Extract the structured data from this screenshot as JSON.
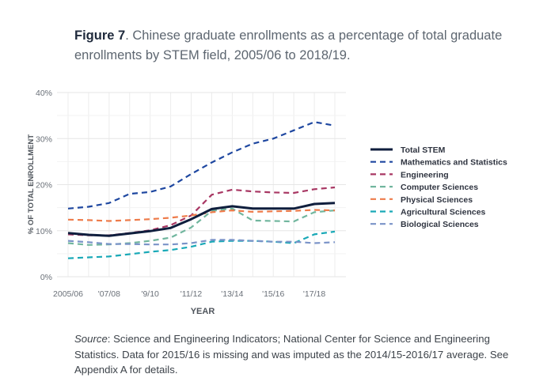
{
  "caption": {
    "label": "Figure 7",
    "text": ". Chinese graduate enrollments as a percentage of total graduate enrollments by STEM field, 2005/06 to 2018/19."
  },
  "source": {
    "label": "Source",
    "text": ": Science and Engineering Indicators; National Center for Science and Engineering Statistics. Data for 2015/16 is missing and was imputed as the 2014/15-2016/17 average. See Appendix A for details."
  },
  "chart_data": {
    "type": "line",
    "title": "Chinese graduate enrollments as a percentage of total graduate enrollments by STEM field, 2005/06 to 2018/19",
    "xlabel": "YEAR",
    "ylabel": "% OF TOTAL ENROLLMENT",
    "x": [
      "2005/06",
      "2006/07",
      "2007/08",
      "2008/09",
      "2009/10",
      "2010/11",
      "2011/12",
      "2012/13",
      "2013/14",
      "2014/15",
      "2015/16",
      "2016/17",
      "2017/18",
      "2018/19"
    ],
    "x_tick_labels": [
      "2005/06",
      "'07/08",
      "'9/10",
      "'11/12",
      "'13/14",
      "'15/16",
      "'17/18"
    ],
    "x_tick_positions": [
      0,
      2,
      4,
      6,
      8,
      10,
      12
    ],
    "ylim": [
      0,
      40
    ],
    "y_ticks": [
      0,
      10,
      20,
      30,
      40
    ],
    "y_tick_labels": [
      "0%",
      "10%",
      "20%",
      "30%",
      "40%"
    ],
    "grid": true,
    "legend_position": "right",
    "series": [
      {
        "name": "Total STEM",
        "color": "#0f1e3d",
        "dash": "solid",
        "width": 3,
        "values": [
          9.5,
          9.1,
          8.9,
          9.4,
          9.9,
          10.6,
          12.5,
          14.7,
          15.3,
          14.8,
          14.8,
          14.8,
          15.8,
          16.0
        ]
      },
      {
        "name": "Mathematics and Statistics",
        "color": "#1e47a0",
        "dash": "dashed",
        "width": 2.2,
        "values": [
          14.8,
          15.2,
          16.0,
          18.0,
          18.4,
          19.6,
          22.3,
          24.8,
          27.0,
          28.9,
          30.0,
          31.8,
          33.6,
          32.8
        ]
      },
      {
        "name": "Engineering",
        "color": "#a83763",
        "dash": "dashed",
        "width": 2.2,
        "values": [
          9.2,
          9.0,
          9.0,
          9.5,
          10.1,
          11.2,
          13.3,
          17.8,
          18.9,
          18.5,
          18.3,
          18.2,
          19.0,
          19.4
        ]
      },
      {
        "name": "Computer Sciences",
        "color": "#71b69e",
        "dash": "dashed",
        "width": 2.2,
        "values": [
          7.3,
          6.9,
          7.0,
          7.3,
          7.8,
          8.5,
          10.7,
          14.3,
          14.8,
          12.2,
          12.1,
          12.0,
          14.0,
          14.4
        ]
      },
      {
        "name": "Physical Sciences",
        "color": "#ee7b4a",
        "dash": "dashed",
        "width": 2.2,
        "values": [
          12.4,
          12.3,
          12.1,
          12.3,
          12.5,
          12.8,
          13.3,
          14.0,
          14.4,
          14.1,
          14.2,
          14.3,
          14.5,
          14.4
        ]
      },
      {
        "name": "Agricultural Sciences",
        "color": "#19a9b7",
        "dash": "dashed",
        "width": 2.2,
        "values": [
          4.0,
          4.2,
          4.4,
          4.9,
          5.4,
          5.8,
          6.5,
          7.6,
          7.8,
          7.8,
          7.6,
          7.3,
          9.2,
          9.8
        ]
      },
      {
        "name": "Biological Sciences",
        "color": "#7a93c8",
        "dash": "dashed",
        "width": 2.2,
        "values": [
          7.8,
          7.5,
          7.1,
          7.1,
          7.0,
          7.0,
          7.3,
          8.0,
          8.0,
          7.8,
          7.6,
          7.6,
          7.3,
          7.5
        ]
      }
    ]
  }
}
